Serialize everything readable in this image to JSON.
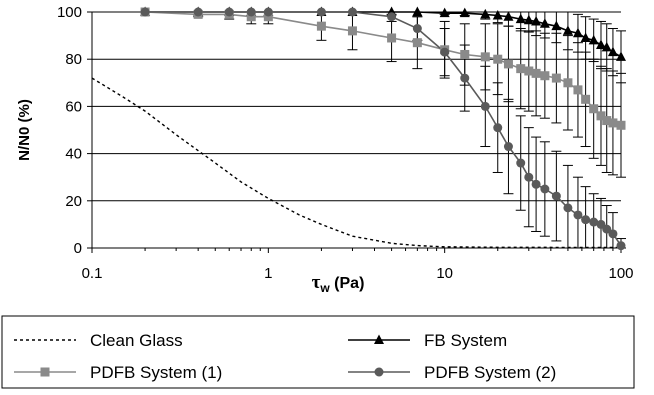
{
  "chart_data": {
    "type": "line",
    "title": "",
    "xlabel_symbol": "τ",
    "xlabel_sub": "w",
    "xlabel_unit": " (Pa)",
    "ylabel": "N/N0 (%)",
    "xscale": "log",
    "xlim": [
      0.1,
      100
    ],
    "ylim": [
      0,
      100
    ],
    "xticks": [
      0.1,
      1,
      10,
      100
    ],
    "xtick_labels": [
      "0.1",
      "1",
      "10",
      "100"
    ],
    "yticks": [
      0,
      20,
      40,
      60,
      80,
      100
    ],
    "ytick_labels": [
      "0",
      "20",
      "40",
      "60",
      "80",
      "100"
    ],
    "grid": "horizontal",
    "legend_position": "bottom",
    "series": [
      {
        "name": "Clean Glass",
        "marker": "none",
        "style": "dotted",
        "color": "#000000",
        "x": [
          0.1,
          0.15,
          0.2,
          0.3,
          0.5,
          0.7,
          1,
          1.5,
          2,
          3,
          5,
          7,
          10,
          20,
          100
        ],
        "y": [
          72,
          64,
          58,
          48,
          36,
          28,
          21,
          14,
          10,
          5,
          2,
          1,
          0.5,
          0.3,
          0.2
        ]
      },
      {
        "name": "FB System",
        "marker": "triangle",
        "style": "solid",
        "color": "#000000",
        "x": [
          0.2,
          0.4,
          0.6,
          0.8,
          1,
          2,
          3,
          5,
          7,
          10,
          13,
          17,
          20,
          23,
          27,
          30,
          33,
          37,
          43,
          50,
          57,
          63,
          70,
          77,
          83,
          90,
          100
        ],
        "y": [
          100,
          100,
          100,
          100,
          100,
          100,
          100,
          100,
          100,
          99.5,
          99.5,
          99,
          98.5,
          98,
          97,
          96.5,
          96,
          95,
          94,
          92,
          91,
          89,
          88,
          86,
          85,
          83,
          81
        ],
        "err": [
          0,
          0,
          0,
          0,
          0,
          0,
          0,
          0,
          0,
          0.5,
          1,
          2,
          3,
          4,
          5,
          5,
          6,
          6,
          7,
          8,
          8,
          9,
          9,
          10,
          10,
          10,
          11
        ]
      },
      {
        "name": "PDFB System (1)",
        "marker": "square",
        "style": "solid",
        "color": "#8a8a8a",
        "x": [
          0.2,
          0.4,
          0.6,
          0.8,
          1,
          2,
          3,
          5,
          7,
          10,
          13,
          17,
          20,
          23,
          27,
          30,
          33,
          37,
          43,
          50,
          57,
          63,
          70,
          77,
          83,
          90,
          100
        ],
        "y": [
          100,
          99,
          99,
          98,
          98,
          94,
          92,
          89,
          87,
          84,
          82,
          81,
          80,
          78,
          76,
          75,
          74,
          73,
          72,
          70,
          67,
          63,
          59,
          56,
          54,
          53,
          52
        ],
        "err": [
          0,
          1,
          2,
          3,
          3,
          6,
          8,
          10,
          11,
          12,
          13,
          14,
          15,
          16,
          17,
          17,
          18,
          18,
          19,
          20,
          20,
          20,
          21,
          21,
          22,
          22,
          22
        ]
      },
      {
        "name": "PDFB System (2)",
        "marker": "circle",
        "style": "solid",
        "color": "#5a5a5a",
        "x": [
          0.2,
          0.4,
          0.6,
          0.8,
          1,
          2,
          3,
          5,
          7,
          10,
          13,
          17,
          20,
          23,
          27,
          30,
          33,
          37,
          43,
          50,
          57,
          63,
          70,
          77,
          83,
          90,
          100
        ],
        "y": [
          100,
          100,
          100,
          100,
          100,
          100,
          100,
          98,
          93,
          83,
          72,
          60,
          51,
          43,
          36,
          30,
          27,
          25,
          22,
          17,
          14,
          12,
          11,
          10,
          8,
          6,
          1
        ],
        "err": [
          0,
          0,
          0,
          0,
          0,
          0,
          0,
          2,
          5,
          10,
          14,
          17,
          19,
          20,
          20,
          21,
          20,
          20,
          19,
          18,
          16,
          14,
          12,
          11,
          10,
          9,
          3
        ]
      }
    ]
  }
}
